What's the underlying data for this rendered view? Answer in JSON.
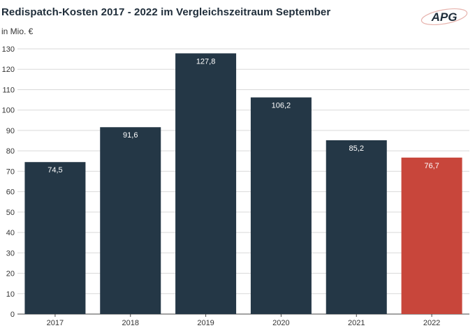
{
  "header": {
    "title": "Redispatch-Kosten 2017 - 2022 im Vergleichszeitraum September",
    "unit": "in Mio. €",
    "logo_text": "APG"
  },
  "colors": {
    "bar": "#243746",
    "bar_highlight": "#c8463b",
    "grid": "#d9d9d9",
    "axis": "#444444",
    "label_text": "#ffffff"
  },
  "chart_data": {
    "type": "bar",
    "title": "Redispatch-Kosten 2017 - 2022 im Vergleichszeitraum September",
    "ylabel": "in Mio. €",
    "xlabel": "",
    "categories": [
      "2017",
      "2018",
      "2019",
      "2020",
      "2021",
      "2022"
    ],
    "values": [
      74.5,
      91.6,
      127.8,
      106.2,
      85.2,
      76.7
    ],
    "value_labels": [
      "74,5",
      "91,6",
      "127,8",
      "106,2",
      "85,2",
      "76,7"
    ],
    "highlight_index": 5,
    "ylim": [
      0,
      130
    ],
    "yticks": [
      0,
      10,
      20,
      30,
      40,
      50,
      60,
      70,
      80,
      90,
      100,
      110,
      120,
      130
    ],
    "grid": true,
    "legend": "none"
  }
}
